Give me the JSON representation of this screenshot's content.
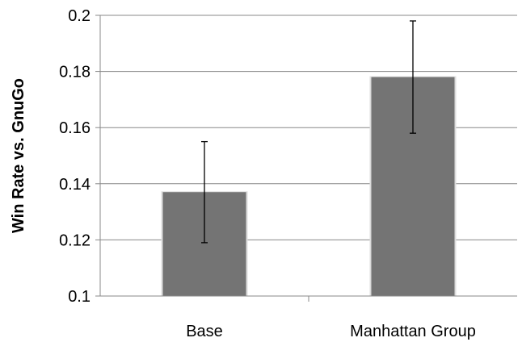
{
  "chart_data": {
    "type": "bar",
    "title": "",
    "xlabel": "",
    "ylabel": "Win Rate vs. GnuGo",
    "categories": [
      "Base",
      "Manhattan Group"
    ],
    "values": [
      0.137,
      0.178
    ],
    "error_bars": [
      {
        "low": 0.119,
        "high": 0.155
      },
      {
        "low": 0.158,
        "high": 0.198
      }
    ],
    "ylim": [
      0.1,
      0.2
    ],
    "yticks": [
      0.1,
      0.12,
      0.14,
      0.16,
      0.18,
      0.2
    ],
    "ytick_labels": [
      "0.1",
      "0.12",
      "0.14",
      "0.16",
      "0.18",
      "0.2"
    ],
    "grid": true,
    "legend": "none",
    "bar_color": "#747474",
    "bar_edge_color": "#dcdcdc",
    "grid_color": "#888888"
  }
}
